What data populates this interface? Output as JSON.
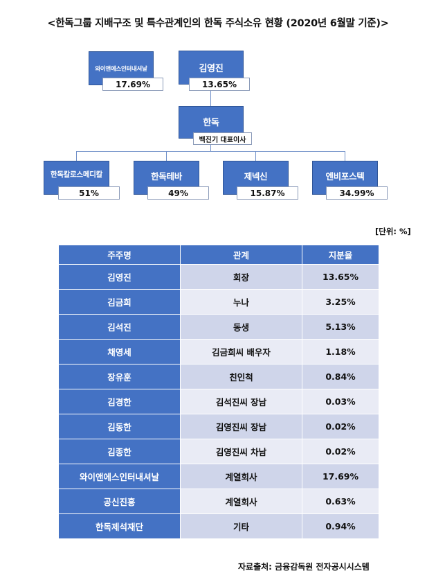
{
  "title": "<한독그룹 지배구조 및 특수관계인의 한독 주식소유 현황 (2020년 6월말 기준)>",
  "diagram": {
    "wine": {
      "name": "와이앤에스인터내셔날",
      "share": "17.69%"
    },
    "kim": {
      "name": "김영진",
      "share": "13.65%"
    },
    "handok": {
      "name": "한독",
      "ceo": "백진기 대표이사"
    },
    "subsidiaries": [
      {
        "name": "한독칼로스메디칼",
        "share": "51%"
      },
      {
        "name": "한독테바",
        "share": "49%"
      },
      {
        "name": "제넥신",
        "share": "15.87%"
      },
      {
        "name": "엔비포스텍",
        "share": "34.99%"
      }
    ]
  },
  "unit": "[단위: %]",
  "table": {
    "headers": [
      "주주명",
      "관계",
      "지분율"
    ],
    "rows": [
      [
        "김영진",
        "회장",
        "13.65%"
      ],
      [
        "김금희",
        "누나",
        "3.25%"
      ],
      [
        "김석진",
        "동생",
        "5.13%"
      ],
      [
        "채영세",
        "김금희씨 배우자",
        "1.18%"
      ],
      [
        "장유훈",
        "친인척",
        "0.84%"
      ],
      [
        "김경한",
        "김석진씨 장남",
        "0.03%"
      ],
      [
        "김동한",
        "김영진씨 장남",
        "0.02%"
      ],
      [
        "김종한",
        "김영진씨 차남",
        "0.02%"
      ],
      [
        "와이앤에스인터내셔날",
        "계열회사",
        "17.69%"
      ],
      [
        "공신진흥",
        "계열회사",
        "0.63%"
      ],
      [
        "한독제석재단",
        "기타",
        "0.94%"
      ]
    ]
  },
  "source": "자료출처: 금융감독원 전자공시시스템",
  "colors": {
    "box": "#4472c4",
    "row_odd": "#cfd5ea",
    "row_even": "#e9ebf5"
  }
}
